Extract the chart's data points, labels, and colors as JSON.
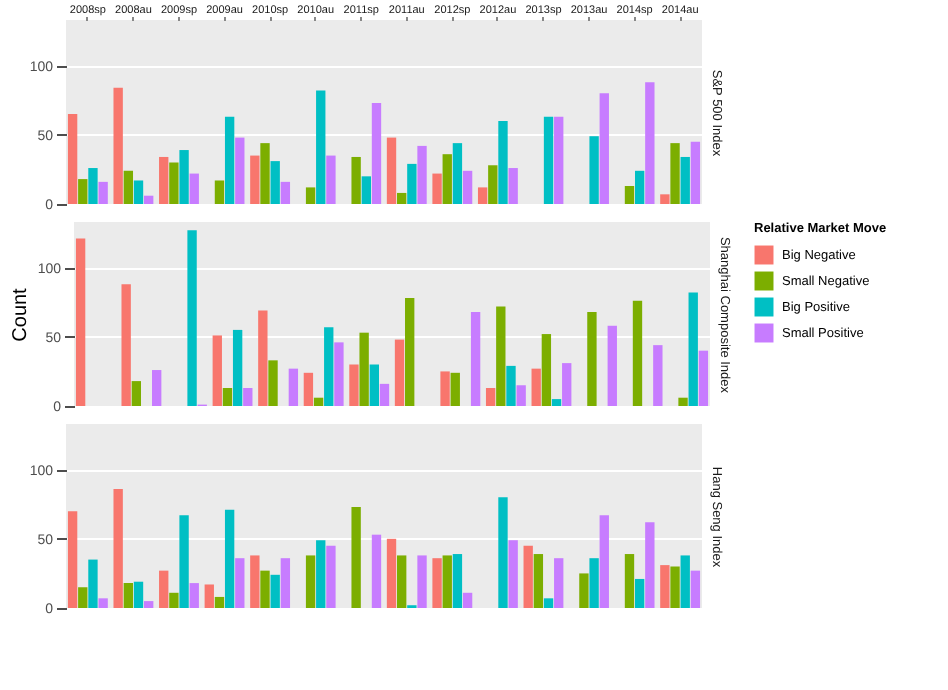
{
  "chart_data": [
    {
      "type": "bar",
      "title": "S&P 500 Index",
      "categories": [
        "2008sp",
        "2008au",
        "2009sp",
        "2009au",
        "2010sp",
        "2010au",
        "2011sp",
        "2011au",
        "2012sp",
        "2012au",
        "2013sp",
        "2013au",
        "2014sp",
        "2014au"
      ],
      "ylim": [
        0,
        133
      ],
      "yticks": [
        0,
        50,
        100
      ],
      "grid": true,
      "legend": false,
      "series": [
        {
          "color": "#f8766d",
          "values": [
            65,
            84,
            34,
            0,
            35,
            0,
            0,
            48,
            22,
            12,
            0,
            0,
            0,
            7
          ]
        },
        {
          "color": "#7cae00",
          "values": [
            18,
            24,
            30,
            17,
            44,
            12,
            34,
            8,
            36,
            28,
            0,
            0,
            13,
            44
          ]
        },
        {
          "color": "#00bfc4",
          "values": [
            26,
            17,
            39,
            63,
            31,
            82,
            20,
            29,
            44,
            60,
            63,
            49,
            24,
            34
          ]
        },
        {
          "color": "#c77cff",
          "values": [
            16,
            6,
            22,
            48,
            16,
            35,
            73,
            42,
            24,
            26,
            63,
            80,
            88,
            45
          ]
        }
      ]
    },
    {
      "type": "bar",
      "title": "Shanghai Composite Index",
      "ylabel": "Count",
      "legend_title": "Relative Market Move",
      "categories": [
        null,
        null,
        null,
        null,
        null,
        null,
        null,
        null,
        null,
        null,
        null,
        null,
        null,
        null
      ],
      "ylim": [
        0,
        133
      ],
      "yticks": [
        0,
        50,
        100
      ],
      "grid": true,
      "legend": "right",
      "tick_labels": "y",
      "series": [
        {
          "name": "Big Negative",
          "color": "#f8766d",
          "values": [
            121,
            88,
            0,
            51,
            69,
            24,
            30,
            48,
            25,
            13,
            27,
            0,
            0,
            0
          ]
        },
        {
          "name": "Small Negative",
          "color": "#7cae00",
          "values": [
            0,
            18,
            0,
            13,
            33,
            6,
            53,
            78,
            24,
            72,
            52,
            68,
            76,
            6
          ]
        },
        {
          "name": "Big Positive",
          "color": "#00bfc4",
          "values": [
            0,
            0,
            127,
            55,
            0,
            57,
            30,
            0,
            0,
            29,
            5,
            0,
            0,
            82
          ]
        },
        {
          "name": "Small Positive",
          "color": "#c77cff",
          "values": [
            0,
            26,
            1,
            13,
            27,
            46,
            16,
            0,
            68,
            15,
            31,
            58,
            44,
            40
          ]
        }
      ]
    },
    {
      "type": "bar",
      "title": "Hang Seng Index",
      "categories": [
        null,
        null,
        null,
        null,
        null,
        null,
        null,
        null,
        null,
        null,
        null,
        null,
        null,
        null
      ],
      "ylim": [
        0,
        133
      ],
      "yticks": [
        0,
        50,
        100
      ],
      "grid": true,
      "legend": false,
      "tick_labels": "y",
      "series": [
        {
          "color": "#f8766d",
          "values": [
            70,
            86,
            27,
            17,
            38,
            0,
            0,
            50,
            36,
            0,
            45,
            0,
            0,
            31
          ]
        },
        {
          "color": "#7cae00",
          "values": [
            15,
            18,
            11,
            8,
            27,
            38,
            73,
            38,
            38,
            0,
            39,
            25,
            39,
            30
          ]
        },
        {
          "color": "#00bfc4",
          "values": [
            35,
            19,
            67,
            71,
            24,
            49,
            0,
            2,
            39,
            80,
            7,
            36,
            21,
            38
          ]
        },
        {
          "color": "#c77cff",
          "values": [
            7,
            5,
            18,
            36,
            36,
            45,
            53,
            38,
            11,
            49,
            36,
            67,
            62,
            27
          ]
        }
      ]
    }
  ]
}
